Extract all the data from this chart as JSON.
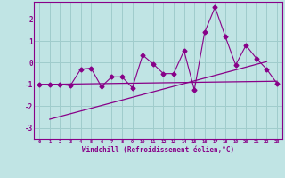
{
  "xlabel": "Windchill (Refroidissement éolien,°C)",
  "background_color": "#c0e4e4",
  "grid_color": "#a0cccc",
  "line_color": "#880088",
  "xlim": [
    -0.5,
    23.5
  ],
  "ylim": [
    -3.5,
    2.8
  ],
  "xticks": [
    0,
    1,
    2,
    3,
    4,
    5,
    6,
    7,
    8,
    9,
    10,
    11,
    12,
    13,
    14,
    15,
    16,
    17,
    18,
    19,
    20,
    21,
    22,
    23
  ],
  "yticks": [
    -3,
    -2,
    -1,
    0,
    1,
    2
  ],
  "scatter_x": [
    0,
    1,
    2,
    3,
    4,
    5,
    6,
    7,
    8,
    9,
    10,
    11,
    12,
    13,
    14,
    15,
    16,
    17,
    18,
    19,
    20,
    21,
    22,
    23
  ],
  "scatter_y": [
    -1.0,
    -1.0,
    -1.0,
    -1.05,
    -0.3,
    -0.25,
    -1.1,
    -0.65,
    -0.65,
    -1.15,
    0.35,
    -0.05,
    -0.5,
    -0.5,
    0.55,
    -1.25,
    1.4,
    2.55,
    1.2,
    -0.1,
    0.8,
    0.2,
    -0.3,
    -0.95
  ],
  "trend1_x": [
    0,
    23
  ],
  "trend1_y": [
    -1.0,
    -0.85
  ],
  "trend2_x": [
    1,
    22
  ],
  "trend2_y": [
    -2.6,
    0.05
  ]
}
